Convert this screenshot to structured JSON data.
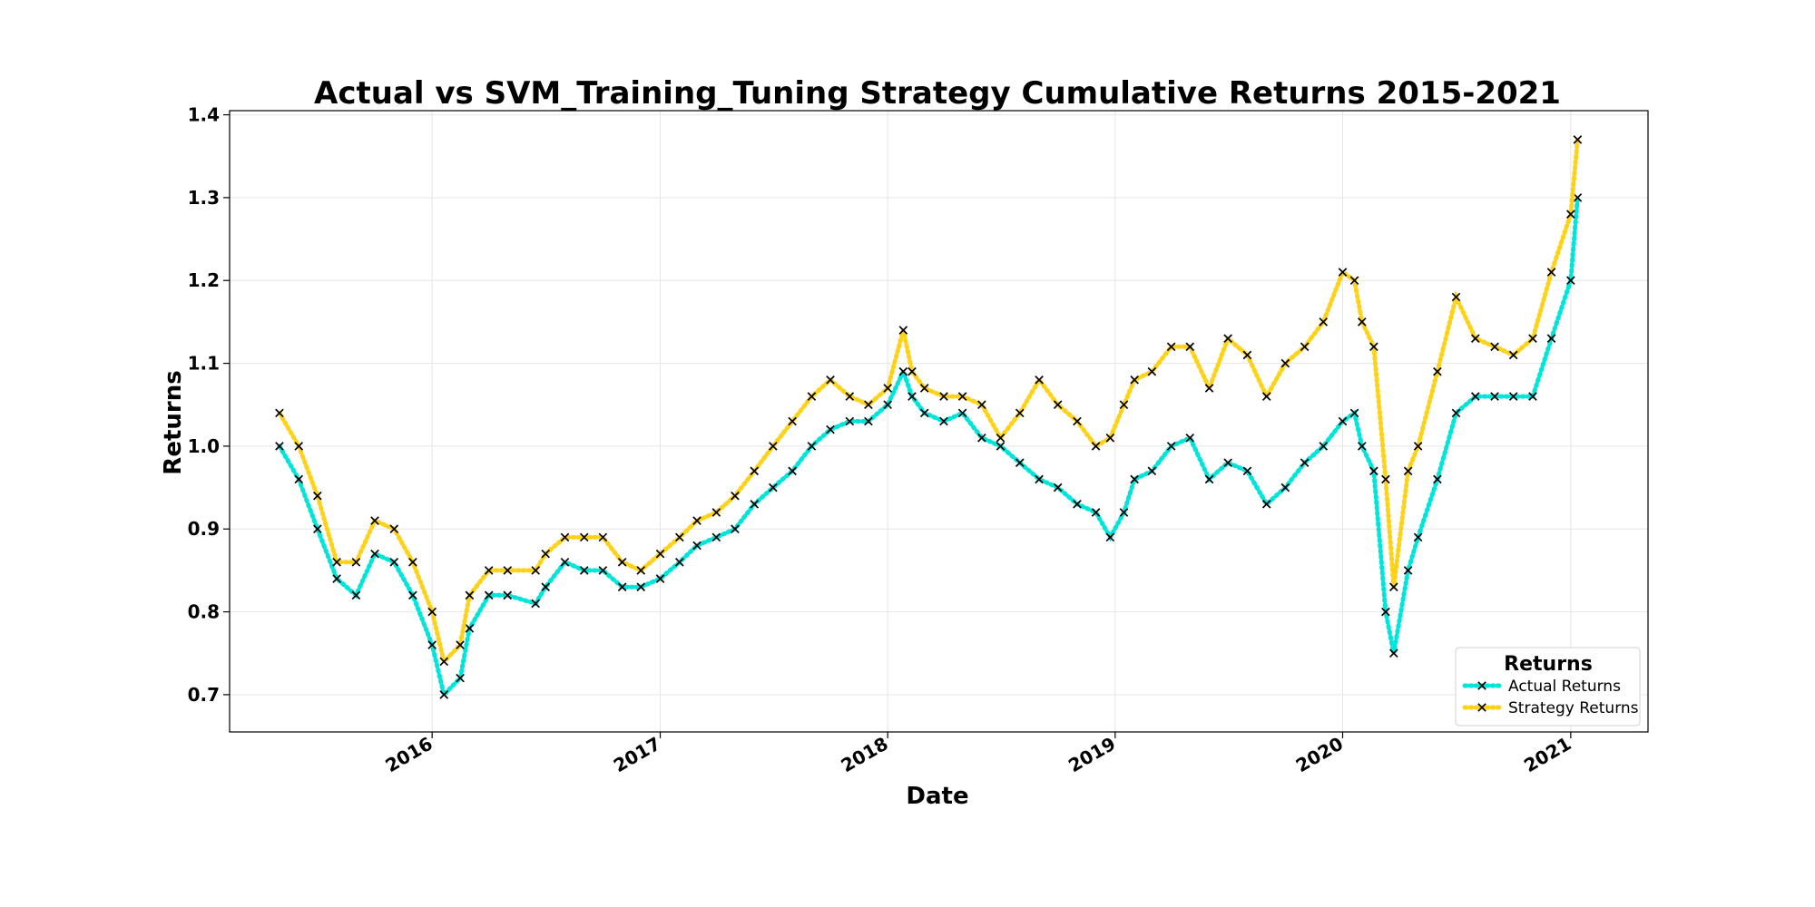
{
  "chart_data": {
    "type": "line",
    "title": "Actual vs SVM_Training_Tuning Strategy Cumulative Returns 2015-2021",
    "xlabel": "Date",
    "ylabel": "Returns",
    "xlim": [
      "2015-02-10",
      "2021-05-05"
    ],
    "ylim": [
      0.655,
      1.405
    ],
    "x_ticks": [
      "2016",
      "2017",
      "2018",
      "2019",
      "2020",
      "2021"
    ],
    "x_tick_dates": [
      "2016-01-01",
      "2017-01-01",
      "2018-01-01",
      "2019-01-01",
      "2020-01-01",
      "2021-01-01"
    ],
    "y_ticks": [
      "0.7",
      "0.8",
      "0.9",
      "1.0",
      "1.1",
      "1.2",
      "1.3",
      "1.4"
    ],
    "grid": true,
    "legend": {
      "title": "Returns",
      "position": "lower-right"
    },
    "marker": "x",
    "line_style": "dotted",
    "x": [
      "2015-05-01",
      "2015-06-01",
      "2015-07-01",
      "2015-08-01",
      "2015-09-01",
      "2015-10-01",
      "2015-11-01",
      "2015-12-01",
      "2016-01-01",
      "2016-01-20",
      "2016-02-15",
      "2016-03-01",
      "2016-04-01",
      "2016-05-01",
      "2016-06-15",
      "2016-07-01",
      "2016-08-01",
      "2016-09-01",
      "2016-10-01",
      "2016-11-01",
      "2016-12-01",
      "2017-01-01",
      "2017-02-01",
      "2017-03-01",
      "2017-04-01",
      "2017-05-01",
      "2017-06-01",
      "2017-07-01",
      "2017-08-01",
      "2017-09-01",
      "2017-10-01",
      "2017-11-01",
      "2017-12-01",
      "2018-01-01",
      "2018-01-26",
      "2018-02-09",
      "2018-03-01",
      "2018-04-01",
      "2018-05-01",
      "2018-06-01",
      "2018-07-01",
      "2018-08-01",
      "2018-09-01",
      "2018-10-01",
      "2018-11-01",
      "2018-12-01",
      "2018-12-24",
      "2019-01-15",
      "2019-02-01",
      "2019-03-01",
      "2019-04-01",
      "2019-05-01",
      "2019-06-01",
      "2019-07-01",
      "2019-08-01",
      "2019-09-01",
      "2019-10-01",
      "2019-11-01",
      "2019-12-01",
      "2020-01-01",
      "2020-01-20",
      "2020-02-01",
      "2020-02-20",
      "2020-03-10",
      "2020-03-23",
      "2020-04-15",
      "2020-05-01",
      "2020-06-01",
      "2020-07-01",
      "2020-08-01",
      "2020-09-01",
      "2020-10-01",
      "2020-11-01",
      "2020-12-01",
      "2021-01-01",
      "2021-01-12"
    ],
    "series": [
      {
        "name": "Actual Returns",
        "color": "#00e5d9",
        "values": [
          1.0,
          0.96,
          0.9,
          0.84,
          0.82,
          0.87,
          0.86,
          0.82,
          0.76,
          0.7,
          0.72,
          0.78,
          0.82,
          0.82,
          0.81,
          0.83,
          0.86,
          0.85,
          0.85,
          0.83,
          0.83,
          0.84,
          0.86,
          0.88,
          0.89,
          0.9,
          0.93,
          0.95,
          0.97,
          1.0,
          1.02,
          1.03,
          1.03,
          1.05,
          1.09,
          1.06,
          1.04,
          1.03,
          1.04,
          1.01,
          1.0,
          0.98,
          0.96,
          0.95,
          0.93,
          0.92,
          0.89,
          0.92,
          0.96,
          0.97,
          1.0,
          1.01,
          0.96,
          0.98,
          0.97,
          0.93,
          0.95,
          0.98,
          1.0,
          1.03,
          1.04,
          1.0,
          0.97,
          0.8,
          0.75,
          0.85,
          0.89,
          0.96,
          1.04,
          1.06,
          1.06,
          1.06,
          1.06,
          1.13,
          1.2,
          1.3
        ]
      },
      {
        "name": "Strategy Returns",
        "color": "#ffd21a",
        "values": [
          1.04,
          1.0,
          0.94,
          0.86,
          0.86,
          0.91,
          0.9,
          0.86,
          0.8,
          0.74,
          0.76,
          0.82,
          0.85,
          0.85,
          0.85,
          0.87,
          0.89,
          0.89,
          0.89,
          0.86,
          0.85,
          0.87,
          0.89,
          0.91,
          0.92,
          0.94,
          0.97,
          1.0,
          1.03,
          1.06,
          1.08,
          1.06,
          1.05,
          1.07,
          1.14,
          1.09,
          1.07,
          1.06,
          1.06,
          1.05,
          1.01,
          1.04,
          1.08,
          1.05,
          1.03,
          1.0,
          1.01,
          1.05,
          1.08,
          1.09,
          1.12,
          1.12,
          1.07,
          1.13,
          1.11,
          1.06,
          1.1,
          1.12,
          1.15,
          1.21,
          1.2,
          1.15,
          1.12,
          0.96,
          0.83,
          0.97,
          1.0,
          1.09,
          1.18,
          1.13,
          1.12,
          1.11,
          1.13,
          1.21,
          1.28,
          1.37
        ]
      }
    ]
  }
}
